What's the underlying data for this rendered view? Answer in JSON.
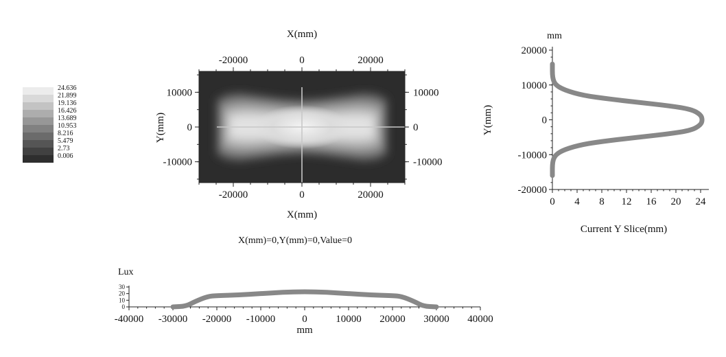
{
  "colorbar": {
    "labels": [
      "24.636",
      "21.899",
      "19.136",
      "16.426",
      "13.689",
      "10.953",
      "8.216",
      "5.479",
      "2.73",
      "0.006"
    ],
    "colors": [
      "#ececec",
      "#d9d9d9",
      "#c3c3c3",
      "#adadad",
      "#979797",
      "#818181",
      "#6b6b6b",
      "#555555",
      "#414141",
      "#2e2e2e"
    ]
  },
  "heatmap": {
    "top_label": "X(mm)",
    "bottom_label": "X(mm)",
    "left_label": "Y(mm)",
    "x_ticks": [
      "-20000",
      "0",
      "20000"
    ],
    "y_ticks": [
      "10000",
      "0",
      "-10000"
    ]
  },
  "readout": "X(mm)=0,Y(mm)=0,Value=0",
  "chart_data": [
    {
      "type": "heatmap",
      "title": "",
      "xlabel": "X(mm)",
      "ylabel": "Y(mm)",
      "xlim": [
        -30000,
        30000
      ],
      "ylim": [
        -16000,
        16000
      ],
      "value_range": [
        0.006,
        24.636
      ],
      "crosshair": {
        "x": 0,
        "y": 0
      },
      "shape": {
        "x": [
          -25000,
          -22000,
          -18000,
          -12000,
          -6000,
          0,
          6000,
          12000,
          18000,
          22000,
          25000
        ],
        "outer_half_height": [
          8000,
          9600,
          10000,
          9200,
          8400,
          8000,
          8400,
          9200,
          10000,
          9600,
          8000
        ]
      }
    },
    {
      "type": "line",
      "title": "",
      "ylabel": "Y(mm)",
      "top_label": "mm",
      "xlabel": "Current Y Slice(mm)",
      "xlim": [
        0,
        24
      ],
      "ylim": [
        -20000,
        20000
      ],
      "x_ticks": [
        0,
        4,
        8,
        12,
        16,
        20,
        24
      ],
      "y_ticks": [
        20000,
        10000,
        0,
        -10000,
        -20000
      ],
      "series": [
        {
          "x": [
            0,
            0,
            0.5,
            2,
            5,
            9,
            14,
            19,
            22.5,
            24,
            24.3,
            24,
            22.5,
            19,
            14,
            9,
            5,
            2,
            0.5,
            0,
            0
          ],
          "y": [
            -16000,
            -12000,
            -10000,
            -8500,
            -7000,
            -6000,
            -5000,
            -4000,
            -3000,
            -1500,
            0,
            1500,
            3000,
            4000,
            5000,
            6000,
            7000,
            8500,
            10000,
            12000,
            16000
          ]
        }
      ]
    },
    {
      "type": "line",
      "title": "",
      "ylabel": "Lux",
      "xlabel": "mm",
      "xlim": [
        -40000,
        40000
      ],
      "ylim": [
        0,
        30
      ],
      "x_ticks": [
        -40000,
        -30000,
        -20000,
        -10000,
        0,
        10000,
        20000,
        30000,
        40000
      ],
      "y_ticks": [
        0,
        10,
        20,
        30
      ],
      "series": [
        {
          "x": [
            -30000,
            -27000,
            -25000,
            -22000,
            -20000,
            -15000,
            -10000,
            -5000,
            0,
            5000,
            10000,
            15000,
            20000,
            22000,
            25000,
            27000,
            30000
          ],
          "y": [
            0,
            1,
            8,
            16,
            17,
            18,
            20,
            22,
            23,
            22,
            20,
            18,
            17,
            16,
            8,
            1,
            0
          ]
        }
      ]
    }
  ]
}
